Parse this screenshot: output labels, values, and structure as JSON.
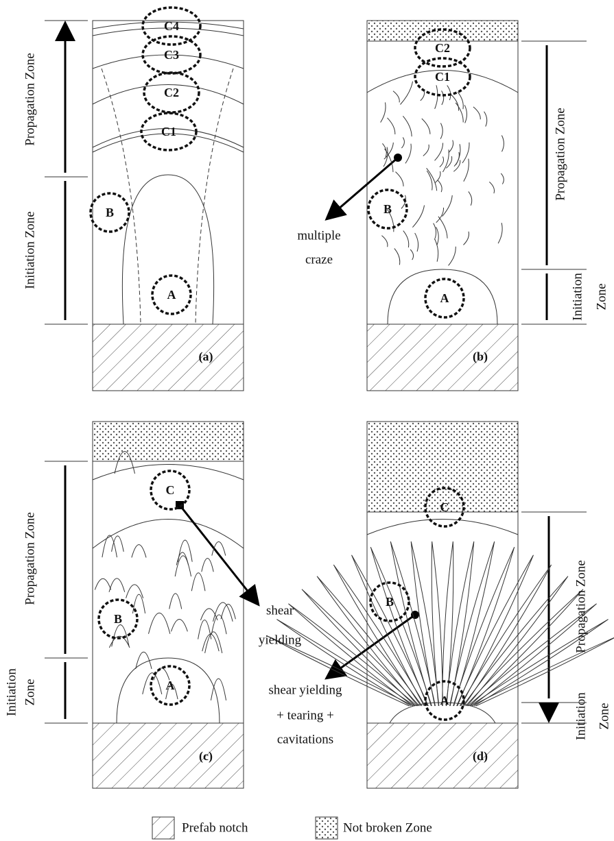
{
  "panels": [
    {
      "label": "(a)",
      "propagation_zone": "Propagation Zone",
      "initiation_zone": [
        "Initiation Zone"
      ],
      "regions": {
        "A": "A",
        "B": "B",
        "C1": "C1",
        "C2": "C2",
        "C3": "C3",
        "C4": "C4"
      },
      "annotation": []
    },
    {
      "label": "(b)",
      "propagation_zone": "Propagation Zone",
      "initiation_zone": [
        "Initiation",
        "Zone"
      ],
      "regions": {
        "A": "A",
        "B": "B",
        "C1": "C1",
        "C2": "C2"
      },
      "annotation": [
        "multiple",
        "craze"
      ]
    },
    {
      "label": "(c)",
      "propagation_zone": "Propagation Zone",
      "initiation_zone": [
        "Initiation",
        "Zone"
      ],
      "regions": {
        "A": "A",
        "B": "B",
        "C": "C"
      },
      "annotation": [
        "shear",
        "yielding"
      ]
    },
    {
      "label": "(d)",
      "propagation_zone": "Propagation Zone",
      "initiation_zone": [
        "Initiation",
        "Zone"
      ],
      "regions": {
        "A": "A",
        "B": "B",
        "C": "C"
      },
      "annotation": [
        "shear yielding",
        "+ tearing +",
        "cavitations"
      ]
    }
  ],
  "legend": {
    "notch": "Prefab notch",
    "not_broken": "Not broken Zone"
  }
}
